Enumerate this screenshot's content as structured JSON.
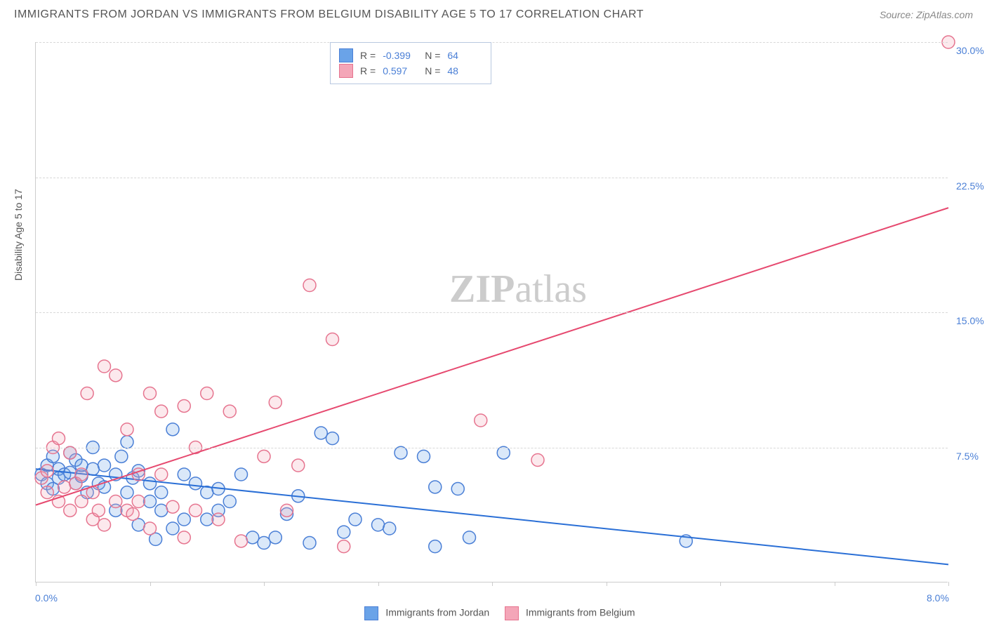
{
  "header": {
    "title": "IMMIGRANTS FROM JORDAN VS IMMIGRANTS FROM BELGIUM DISABILITY AGE 5 TO 17 CORRELATION CHART",
    "source": "Source: ZipAtlas.com"
  },
  "watermark": {
    "zip": "ZIP",
    "atlas": "atlas"
  },
  "chart": {
    "type": "scatter",
    "background_color": "#ffffff",
    "grid_color": "#d8d8d8",
    "border_color": "#cccccc",
    "text_color": "#555555",
    "value_color": "#4a7fd6",
    "ylabel": "Disability Age 5 to 17",
    "xlim": [
      0,
      8
    ],
    "ylim": [
      0,
      30
    ],
    "xticks": [
      0,
      1,
      2,
      3,
      4,
      5,
      6,
      7,
      8
    ],
    "xtick_labels": {
      "0": "0.0%",
      "8": "8.0%"
    },
    "yticks": [
      7.5,
      15.0,
      22.5,
      30.0
    ],
    "ytick_labels": [
      "7.5%",
      "15.0%",
      "22.5%",
      "30.0%"
    ],
    "marker_radius": 9,
    "marker_stroke_width": 1.5,
    "marker_fill_opacity": 0.25,
    "line_width": 2,
    "series": [
      {
        "name": "Immigrants from Jordan",
        "color": "#6aa3e8",
        "stroke": "#4a7fd6",
        "line_color": "#2a6fd6",
        "R": "-0.399",
        "N": "64",
        "trend": {
          "y_at_xmin": 6.3,
          "y_at_xmax": 1.0
        },
        "points": [
          [
            0.05,
            6.0
          ],
          [
            0.1,
            6.5
          ],
          [
            0.1,
            5.5
          ],
          [
            0.15,
            7.0
          ],
          [
            0.15,
            5.2
          ],
          [
            0.2,
            6.3
          ],
          [
            0.2,
            5.8
          ],
          [
            0.25,
            6.0
          ],
          [
            0.3,
            6.1
          ],
          [
            0.3,
            7.2
          ],
          [
            0.35,
            5.5
          ],
          [
            0.35,
            6.8
          ],
          [
            0.4,
            5.9
          ],
          [
            0.4,
            6.5
          ],
          [
            0.45,
            5.0
          ],
          [
            0.5,
            6.3
          ],
          [
            0.5,
            7.5
          ],
          [
            0.55,
            5.5
          ],
          [
            0.6,
            6.5
          ],
          [
            0.6,
            5.3
          ],
          [
            0.7,
            6.0
          ],
          [
            0.7,
            4.0
          ],
          [
            0.75,
            7.0
          ],
          [
            0.8,
            5.0
          ],
          [
            0.8,
            7.8
          ],
          [
            0.85,
            5.8
          ],
          [
            0.9,
            3.2
          ],
          [
            0.9,
            6.2
          ],
          [
            1.0,
            5.5
          ],
          [
            1.0,
            4.5
          ],
          [
            1.05,
            2.4
          ],
          [
            1.1,
            4.0
          ],
          [
            1.1,
            5.0
          ],
          [
            1.2,
            8.5
          ],
          [
            1.2,
            3.0
          ],
          [
            1.3,
            6.0
          ],
          [
            1.3,
            3.5
          ],
          [
            1.4,
            5.5
          ],
          [
            1.5,
            5.0
          ],
          [
            1.5,
            3.5
          ],
          [
            1.6,
            4.0
          ],
          [
            1.6,
            5.2
          ],
          [
            1.7,
            4.5
          ],
          [
            1.8,
            6.0
          ],
          [
            1.9,
            2.5
          ],
          [
            2.0,
            2.2
          ],
          [
            2.1,
            2.5
          ],
          [
            2.2,
            3.8
          ],
          [
            2.3,
            4.8
          ],
          [
            2.4,
            2.2
          ],
          [
            2.5,
            8.3
          ],
          [
            2.6,
            8.0
          ],
          [
            2.7,
            2.8
          ],
          [
            2.8,
            3.5
          ],
          [
            3.0,
            3.2
          ],
          [
            3.1,
            3.0
          ],
          [
            3.2,
            7.2
          ],
          [
            3.4,
            7.0
          ],
          [
            3.5,
            5.3
          ],
          [
            3.5,
            2.0
          ],
          [
            3.7,
            5.2
          ],
          [
            3.8,
            2.5
          ],
          [
            4.1,
            7.2
          ],
          [
            5.7,
            2.3
          ]
        ]
      },
      {
        "name": "Immigrants from Belgium",
        "color": "#f4a6b8",
        "stroke": "#e6748f",
        "line_color": "#e6496f",
        "R": "0.597",
        "N": "48",
        "trend": {
          "y_at_xmin": 4.3,
          "y_at_xmax": 20.8
        },
        "points": [
          [
            0.05,
            5.8
          ],
          [
            0.1,
            6.2
          ],
          [
            0.1,
            5.0
          ],
          [
            0.15,
            7.5
          ],
          [
            0.2,
            8.0
          ],
          [
            0.2,
            4.5
          ],
          [
            0.25,
            5.3
          ],
          [
            0.3,
            7.2
          ],
          [
            0.3,
            4.0
          ],
          [
            0.35,
            5.5
          ],
          [
            0.4,
            4.5
          ],
          [
            0.4,
            6.0
          ],
          [
            0.45,
            10.5
          ],
          [
            0.5,
            3.5
          ],
          [
            0.5,
            5.0
          ],
          [
            0.55,
            4.0
          ],
          [
            0.6,
            3.2
          ],
          [
            0.6,
            12.0
          ],
          [
            0.7,
            11.5
          ],
          [
            0.7,
            4.5
          ],
          [
            0.8,
            8.5
          ],
          [
            0.8,
            4.0
          ],
          [
            0.85,
            3.8
          ],
          [
            0.9,
            6.0
          ],
          [
            0.9,
            4.5
          ],
          [
            1.0,
            10.5
          ],
          [
            1.0,
            3.0
          ],
          [
            1.1,
            9.5
          ],
          [
            1.1,
            6.0
          ],
          [
            1.2,
            4.2
          ],
          [
            1.3,
            9.8
          ],
          [
            1.3,
            2.5
          ],
          [
            1.4,
            4.0
          ],
          [
            1.4,
            7.5
          ],
          [
            1.5,
            10.5
          ],
          [
            1.6,
            3.5
          ],
          [
            1.7,
            9.5
          ],
          [
            1.8,
            2.3
          ],
          [
            2.0,
            7.0
          ],
          [
            2.1,
            10.0
          ],
          [
            2.2,
            4.0
          ],
          [
            2.3,
            6.5
          ],
          [
            2.4,
            16.5
          ],
          [
            2.6,
            13.5
          ],
          [
            2.7,
            2.0
          ],
          [
            3.9,
            9.0
          ],
          [
            4.4,
            6.8
          ],
          [
            8.0,
            30.0
          ]
        ]
      }
    ]
  },
  "stats_labels": {
    "R": "R =",
    "N": "N ="
  },
  "legend": {
    "s1_label": "Immigrants from Jordan",
    "s2_label": "Immigrants from Belgium"
  }
}
